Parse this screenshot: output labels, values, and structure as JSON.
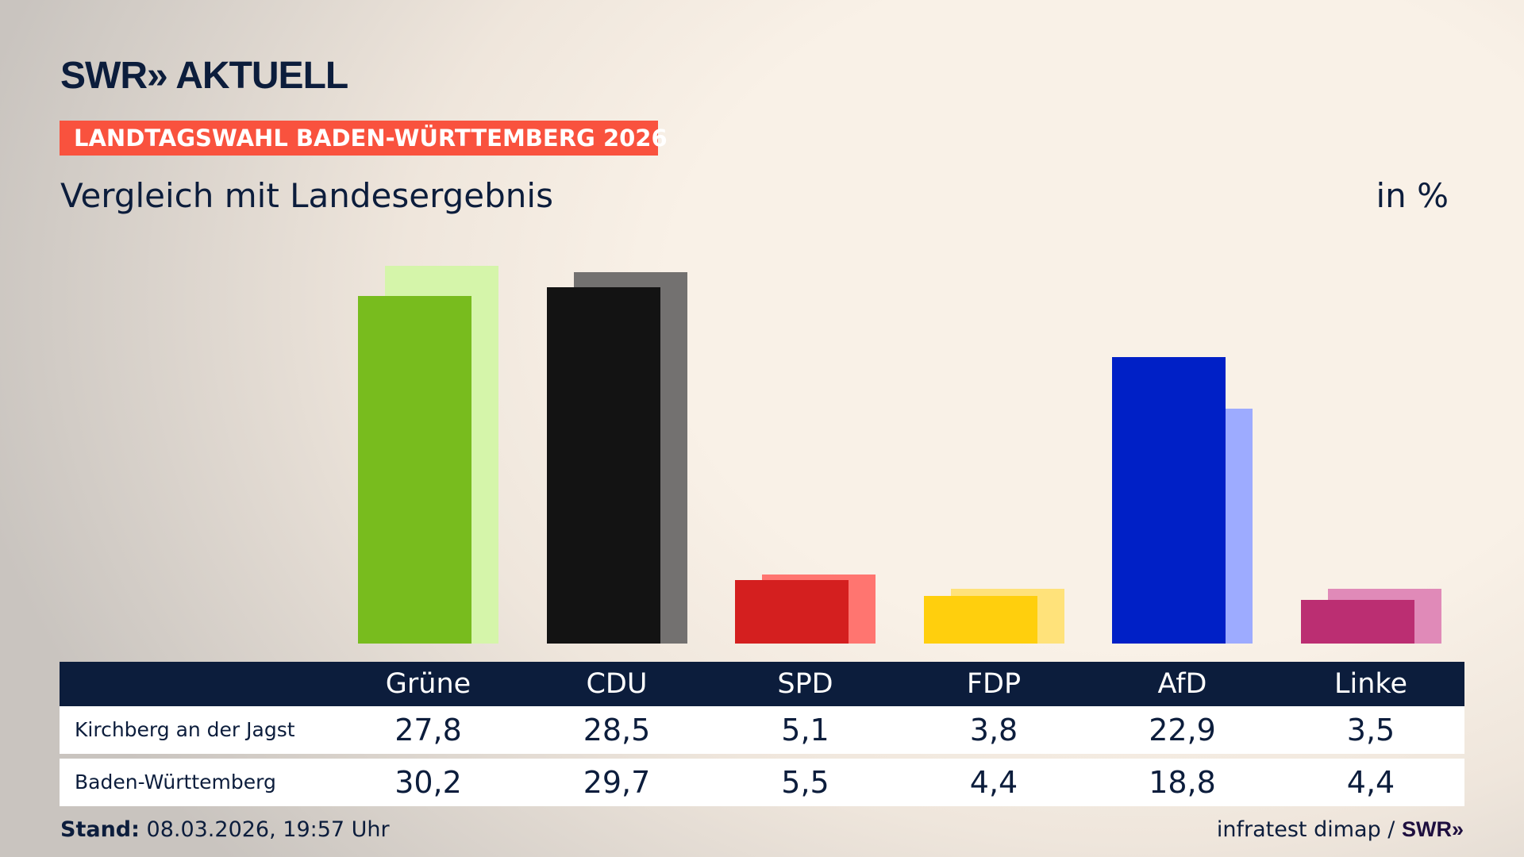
{
  "header": {
    "logo": "SWR» AKTUELL",
    "banner": "LANDTAGSWAHL BADEN-WÜRTTEMBERG 2026",
    "subtitle": "Vergleich mit Landesergebnis",
    "unit": "in %"
  },
  "chart_data": {
    "type": "bar",
    "categories": [
      "Grüne",
      "CDU",
      "SPD",
      "FDP",
      "AfD",
      "Linke"
    ],
    "series": [
      {
        "name": "Kirchberg an der Jagst",
        "values": [
          27.8,
          28.5,
          5.1,
          3.8,
          22.9,
          3.5
        ],
        "labels": [
          "27,8",
          "28,5",
          "5,1",
          "3,8",
          "22,9",
          "3,5"
        ]
      },
      {
        "name": "Baden-Württemberg",
        "values": [
          30.2,
          29.7,
          5.5,
          4.4,
          18.8,
          4.4
        ],
        "labels": [
          "30,2",
          "29,7",
          "5,5",
          "4,4",
          "18,8",
          "4,4"
        ]
      }
    ],
    "colors": {
      "primary": [
        "#78bc1e",
        "#131313",
        "#d41f1f",
        "#ffcf0d",
        "#0020c6",
        "#bb2e72"
      ],
      "secondary": [
        "#d5f5aa",
        "#737170",
        "#ff7570",
        "#ffe27a",
        "#9dabff",
        "#e08ab8"
      ]
    },
    "ylim": [
      0,
      31
    ],
    "grid": false
  },
  "footer": {
    "stand_label": "Stand:",
    "stand_value": "08.03.2026, 19:57 Uhr",
    "source": "infratest dimap / ",
    "source_logo": "SWR»"
  }
}
